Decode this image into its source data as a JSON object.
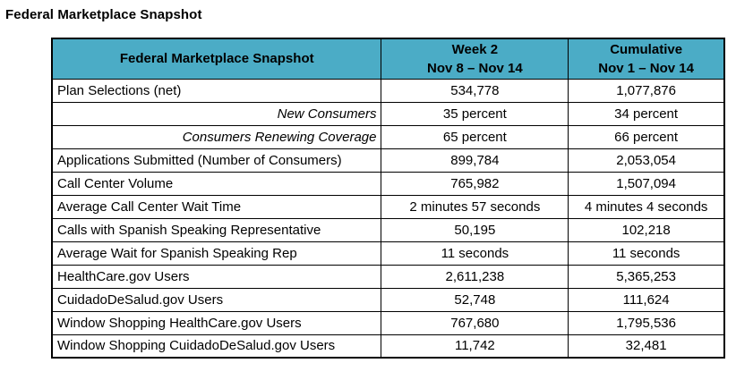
{
  "page_title": "Federal Marketplace Snapshot",
  "colors": {
    "header_bg": "#4BACC6",
    "border": "#000000",
    "text": "#000000"
  },
  "table": {
    "header": {
      "label_col": "Federal Marketplace Snapshot",
      "week_col_line1": "Week 2",
      "week_col_line2": "Nov 8 – Nov 14",
      "cumulative_col_line1": "Cumulative",
      "cumulative_col_line2": "Nov 1 – Nov 14"
    },
    "rows": [
      {
        "label": "Plan Selections (net)",
        "week2": "534,778",
        "cumulative": "1,077,876"
      },
      {
        "label": "New Consumers",
        "week2": "35 percent",
        "cumulative": "34 percent"
      },
      {
        "label": "Consumers Renewing Coverage",
        "week2": "65 percent",
        "cumulative": "66 percent"
      },
      {
        "label": "Applications Submitted (Number of Consumers)",
        "week2": "899,784",
        "cumulative": "2,053,054"
      },
      {
        "label": "Call Center Volume",
        "week2": "765,982",
        "cumulative": "1,507,094"
      },
      {
        "label": "Average Call Center Wait Time",
        "week2": "2 minutes 57 seconds",
        "cumulative": "4 minutes 4 seconds"
      },
      {
        "label": "Calls with Spanish Speaking Representative",
        "week2": "50,195",
        "cumulative": "102,218"
      },
      {
        "label": "Average Wait for Spanish Speaking Rep",
        "week2": "11 seconds",
        "cumulative": "11 seconds"
      },
      {
        "label": "HealthCare.gov Users",
        "week2": "2,611,238",
        "cumulative": "5,365,253"
      },
      {
        "label": "CuidadoDeSalud.gov Users",
        "week2": "52,748",
        "cumulative": "111,624"
      },
      {
        "label": "Window Shopping HealthCare.gov Users",
        "week2": "767,680",
        "cumulative": "1,795,536"
      },
      {
        "label": "Window Shopping CuidadoDeSalud.gov Users",
        "week2": "11,742",
        "cumulative": "32,481"
      }
    ]
  }
}
